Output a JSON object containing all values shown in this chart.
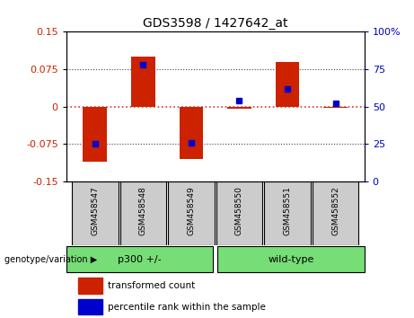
{
  "title": "GDS3598 / 1427642_at",
  "samples": [
    "GSM458547",
    "GSM458548",
    "GSM458549",
    "GSM458550",
    "GSM458551",
    "GSM458552"
  ],
  "red_values": [
    -0.11,
    0.1,
    -0.105,
    -0.005,
    0.09,
    -0.003
  ],
  "blue_values_pct": [
    25,
    78,
    26,
    54,
    62,
    52
  ],
  "group_label_prefix": "genotype/variation",
  "group1_label": "p300 +/-",
  "group1_samples": [
    0,
    1,
    2
  ],
  "group2_label": "wild-type",
  "group2_samples": [
    3,
    4,
    5
  ],
  "ylim_left": [
    -0.15,
    0.15
  ],
  "ylim_right": [
    0,
    100
  ],
  "yticks_left": [
    -0.15,
    -0.075,
    0,
    0.075,
    0.15
  ],
  "ytick_labels_left": [
    "-0.15",
    "-0.075",
    "0",
    "0.075",
    "0.15"
  ],
  "yticks_right": [
    0,
    25,
    50,
    75,
    100
  ],
  "ytick_labels_right": [
    "0",
    "25",
    "50",
    "75",
    "100%"
  ],
  "hline_color": "#dd3333",
  "grid_color": "#444444",
  "bar_width": 0.5,
  "legend_red_label": "transformed count",
  "legend_blue_label": "percentile rank within the sample",
  "left_axis_color": "#cc2200",
  "right_axis_color": "#0000cc",
  "bg_sample_box": "#cccccc",
  "bg_group_box": "#77dd77",
  "bar_color": "#cc2200",
  "blue_color": "#0000cc"
}
